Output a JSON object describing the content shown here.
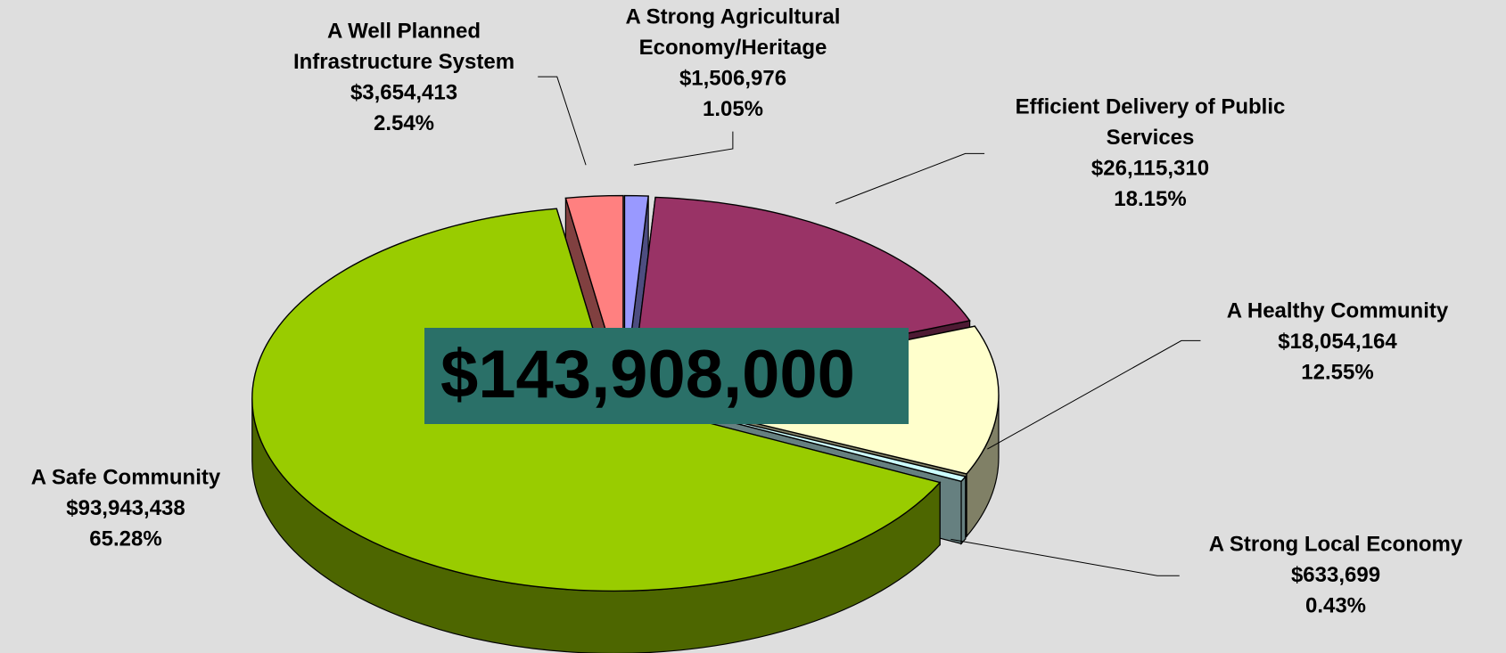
{
  "chart_data": {
    "type": "pie3d",
    "categories": [
      [
        "A Strong Agricultural",
        "Economy/Heritage"
      ],
      [
        "Efficient Delivery of Public",
        "Services"
      ],
      [
        "A Healthy Community"
      ],
      [
        "A Strong Local Economy"
      ],
      [
        "A Safe Community"
      ],
      [
        "A Well Planned",
        "Infrastructure System"
      ]
    ],
    "values": [
      1506976,
      26115310,
      18054164,
      633699,
      93943438,
      3654413
    ],
    "value_labels": [
      "$1,506,976",
      "$26,115,310",
      "$18,054,164",
      "$633,699",
      "$93,943,438",
      "$3,654,413"
    ],
    "percents": [
      1.05,
      18.15,
      12.55,
      0.43,
      65.28,
      2.54
    ],
    "percent_labels": [
      "1.05%",
      "18.15%",
      "12.55%",
      "0.43%",
      "65.28%",
      "2.54%"
    ],
    "colors": [
      "#9999ff",
      "#993366",
      "#ffffcc",
      "#ccffff",
      "#99cc00",
      "#ff8080"
    ],
    "annotation": "$143,908,000"
  }
}
